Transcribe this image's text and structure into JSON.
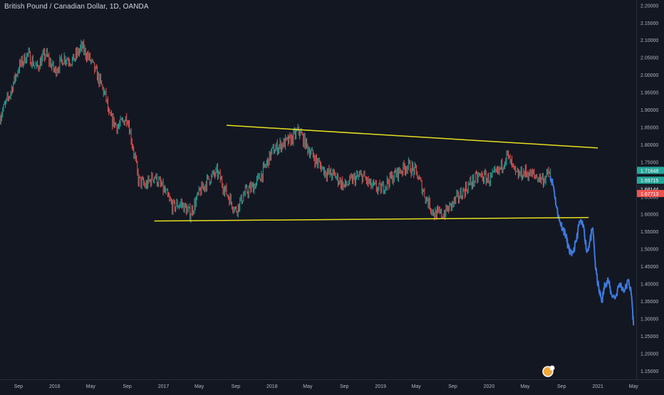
{
  "chart_data": {
    "type": "line",
    "title": "British Pound / Canadian Dollar, 1D, OANDA",
    "xlabel": "",
    "ylabel": "",
    "ylim": [
      1.125,
      2.215
    ],
    "xlim": [
      "2015-07-01",
      "2021-05-10"
    ],
    "x_ticks": [
      {
        "date": "2015-09-01",
        "label": "Sep"
      },
      {
        "date": "2016-01-01",
        "label": "2016"
      },
      {
        "date": "2016-05-01",
        "label": "May"
      },
      {
        "date": "2016-09-01",
        "label": "Sep"
      },
      {
        "date": "2017-01-01",
        "label": "2017"
      },
      {
        "date": "2017-05-01",
        "label": "May"
      },
      {
        "date": "2017-09-01",
        "label": "Sep"
      },
      {
        "date": "2018-01-01",
        "label": "2018"
      },
      {
        "date": "2018-05-01",
        "label": "May"
      },
      {
        "date": "2018-09-01",
        "label": "Sep"
      },
      {
        "date": "2019-01-01",
        "label": "2019"
      },
      {
        "date": "2019-05-01",
        "label": "May"
      },
      {
        "date": "2019-09-01",
        "label": "Sep"
      },
      {
        "date": "2020-01-01",
        "label": "2020"
      },
      {
        "date": "2020-05-01",
        "label": "May"
      },
      {
        "date": "2020-09-01",
        "label": "Sep"
      },
      {
        "date": "2021-01-01",
        "label": "2021"
      },
      {
        "date": "2021-05-01",
        "label": "May"
      }
    ],
    "y_ticks": [
      {
        "value": 2.2,
        "label": "2.20000"
      },
      {
        "value": 2.15,
        "label": "2.15000"
      },
      {
        "value": 2.1,
        "label": "2.10000"
      },
      {
        "value": 2.05,
        "label": "2.05000"
      },
      {
        "value": 2.0,
        "label": "2.00000"
      },
      {
        "value": 1.95,
        "label": "1.95000"
      },
      {
        "value": 1.9,
        "label": "1.90000"
      },
      {
        "value": 1.85,
        "label": "1.85000"
      },
      {
        "value": 1.8,
        "label": "1.80000"
      },
      {
        "value": 1.75,
        "label": "1.75000"
      },
      {
        "value": 1.7,
        "label": "1.70000"
      },
      {
        "value": 1.65,
        "label": "1.65000"
      },
      {
        "value": 1.6,
        "label": "1.60000"
      },
      {
        "value": 1.55,
        "label": "1.55000"
      },
      {
        "value": 1.5,
        "label": "1.50000"
      },
      {
        "value": 1.45,
        "label": "1.45000"
      },
      {
        "value": 1.4,
        "label": "1.40000"
      },
      {
        "value": 1.35,
        "label": "1.35000"
      },
      {
        "value": 1.3,
        "label": "1.30000"
      },
      {
        "value": 1.25,
        "label": "1.25000"
      },
      {
        "value": 1.2,
        "label": "1.20000"
      },
      {
        "value": 1.15,
        "label": "1.15000"
      }
    ],
    "grid": false,
    "series": [
      {
        "name": "",
        "style": "candles",
        "color_up": "#26a69a",
        "color_down": "#ef5350",
        "x": [
          "2015-07-01",
          "2015-08-01",
          "2015-09-01",
          "2015-10-01",
          "2015-11-01",
          "2015-12-01",
          "2016-01-01",
          "2016-02-01",
          "2016-03-01",
          "2016-04-01",
          "2016-05-01",
          "2016-06-01",
          "2016-06-23",
          "2016-07-01",
          "2016-08-01",
          "2016-09-01",
          "2016-10-01",
          "2016-10-07",
          "2016-11-01",
          "2016-12-01",
          "2017-01-01",
          "2017-02-01",
          "2017-03-01",
          "2017-04-01",
          "2017-05-01",
          "2017-06-01",
          "2017-07-01",
          "2017-08-01",
          "2017-09-01",
          "2017-10-01",
          "2017-11-01",
          "2017-12-01",
          "2018-01-01",
          "2018-02-01",
          "2018-03-01",
          "2018-04-01",
          "2018-05-01",
          "2018-06-01",
          "2018-07-01",
          "2018-08-01",
          "2018-09-01",
          "2018-10-01",
          "2018-11-01",
          "2018-12-01",
          "2019-01-01",
          "2019-02-01",
          "2019-03-01",
          "2019-04-01",
          "2019-05-01",
          "2019-06-01",
          "2019-07-01",
          "2019-08-01",
          "2019-09-01",
          "2019-10-01",
          "2019-11-01",
          "2019-12-01",
          "2020-01-01",
          "2020-02-01",
          "2020-03-01",
          "2020-04-01",
          "2020-05-01",
          "2020-06-01",
          "2020-07-01",
          "2020-07-25"
        ],
        "y": [
          1.88,
          1.94,
          2.02,
          2.06,
          2.02,
          2.06,
          2.01,
          2.05,
          2.04,
          2.08,
          2.04,
          1.98,
          1.93,
          1.88,
          1.85,
          1.88,
          1.74,
          1.7,
          1.68,
          1.71,
          1.67,
          1.62,
          1.63,
          1.6,
          1.66,
          1.7,
          1.72,
          1.66,
          1.61,
          1.66,
          1.68,
          1.72,
          1.78,
          1.8,
          1.81,
          1.84,
          1.79,
          1.75,
          1.72,
          1.71,
          1.68,
          1.7,
          1.71,
          1.68,
          1.67,
          1.7,
          1.72,
          1.74,
          1.72,
          1.65,
          1.6,
          1.6,
          1.63,
          1.66,
          1.69,
          1.71,
          1.7,
          1.72,
          1.77,
          1.71,
          1.72,
          1.71,
          1.7,
          1.72
        ]
      },
      {
        "name": "",
        "style": "line",
        "color": "#3d7ae0",
        "x": [
          "2020-07-25",
          "2020-08-05",
          "2020-08-15",
          "2020-08-25",
          "2020-09-05",
          "2020-09-15",
          "2020-09-25",
          "2020-10-05",
          "2020-10-20",
          "2020-11-01",
          "2020-11-15",
          "2020-11-25",
          "2020-12-05",
          "2020-12-15",
          "2020-12-25",
          "2021-01-05",
          "2021-01-15",
          "2021-01-25",
          "2021-02-05",
          "2021-02-15",
          "2021-03-01",
          "2021-03-15",
          "2021-04-01",
          "2021-04-15",
          "2021-04-25",
          "2021-05-01"
        ],
        "y": [
          1.71,
          1.68,
          1.62,
          1.58,
          1.56,
          1.54,
          1.5,
          1.48,
          1.52,
          1.58,
          1.56,
          1.49,
          1.52,
          1.56,
          1.44,
          1.38,
          1.35,
          1.4,
          1.41,
          1.37,
          1.36,
          1.4,
          1.38,
          1.41,
          1.36,
          1.28
        ]
      }
    ],
    "trendlines": [
      {
        "name": "upper",
        "color": "#e6df1e",
        "points": [
          {
            "x": "2017-08-01",
            "y": 1.855
          },
          {
            "x": "2021-01-01",
            "y": 1.79
          }
        ]
      },
      {
        "name": "lower",
        "color": "#e6df1e",
        "points": [
          {
            "x": "2016-12-01",
            "y": 1.58
          },
          {
            "x": "2020-12-01",
            "y": 1.59
          }
        ]
      }
    ],
    "price_labels": [
      {
        "label": "1.71648",
        "value": 1.71648,
        "color": "#26a69a"
      },
      {
        "label": "1.69715",
        "value": 1.69715,
        "color": "#26a69a"
      },
      {
        "label": "1.68144",
        "value": 1.68144,
        "color": "#1e222d"
      },
      {
        "label": "1.67713",
        "value": 1.67713,
        "color": "#ef5350"
      }
    ],
    "colors": {
      "background": "#131722",
      "axis_text": "#b2b5be",
      "axis_line": "#2a2e39"
    },
    "logo_icon": "tradingview-logo-icon"
  }
}
